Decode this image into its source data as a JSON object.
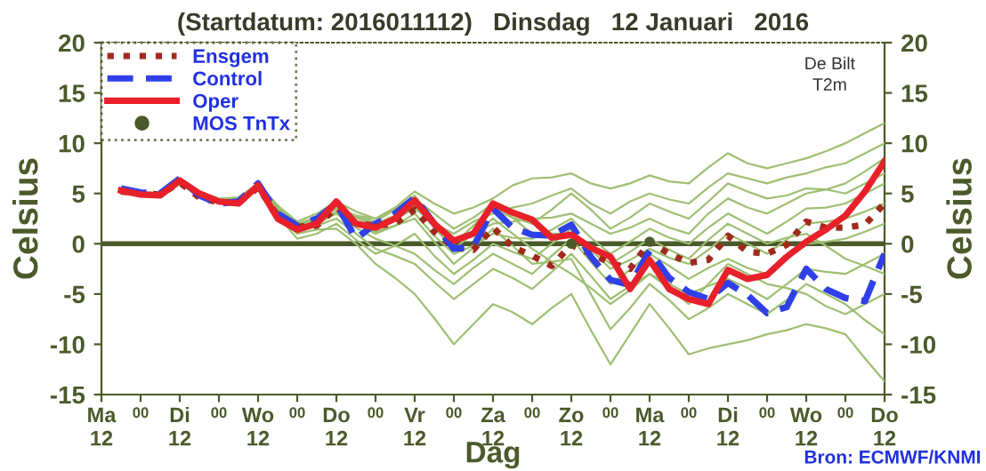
{
  "chart_data": {
    "type": "line",
    "title": "(Startdatum: 2016011112)   Dinsdag   12 Januari   2016",
    "xlabel": "Dag",
    "ylabel": "Celsius",
    "y2label": "Celsius",
    "annotations": [
      "De Bilt\nT2m",
      "Bron: ECMWF/KNMI"
    ],
    "ylim": [
      -15,
      20
    ],
    "yticks": [
      -15,
      -10,
      -5,
      0,
      5,
      10,
      15,
      20
    ],
    "y2lim": [
      -15,
      20
    ],
    "y2ticks": [
      -15,
      -10,
      -5,
      0,
      5,
      10,
      15,
      20
    ],
    "categories": [
      "Ma\n12",
      null,
      "00",
      null,
      "Di\n12",
      null,
      "00",
      null,
      "Wo\n12",
      null,
      "00",
      null,
      "Do\n12",
      null,
      "00",
      null,
      "Vr\n12",
      null,
      "00",
      null,
      "Za\n12",
      null,
      "00",
      null,
      "Zo\n12",
      null,
      "00",
      null,
      "Ma\n12",
      null,
      "00",
      null,
      "Di\n12",
      null,
      "00",
      null,
      "Wo\n12",
      null,
      "00",
      null,
      "Do\n12"
    ],
    "grid": false,
    "legend": "top left",
    "marker": "none",
    "ref_lines": [
      {
        "axis": "y",
        "value": 0,
        "label": null,
        "color": "#4a5a2a",
        "line_style": "solid"
      }
    ],
    "series": [
      {
        "color": "#9ebf72",
        "line_style": "solid",
        "values": [
          null,
          5.5,
          5.2,
          5.0,
          6.4,
          5.2,
          4.5,
          4.6,
          6.0,
          3.8,
          2.0,
          2.6,
          3.5,
          2.8,
          2.5,
          3.6,
          5.2,
          4.0,
          3.0,
          3.6,
          4.5,
          5.8,
          6.5,
          6.6,
          7.0,
          6.0,
          5.5,
          6.0,
          6.8,
          6.2,
          6.0,
          7.6,
          9.0,
          8.0,
          7.5,
          8.0,
          8.5,
          9.2,
          10.0,
          11.0,
          12.0
        ]
      },
      {
        "color": "#9ebf72",
        "line_style": "solid",
        "values": [
          null,
          5.0,
          4.8,
          4.6,
          6.0,
          4.8,
          4.0,
          4.2,
          5.5,
          3.0,
          1.0,
          2.0,
          3.0,
          2.0,
          1.5,
          2.5,
          3.5,
          2.0,
          1.0,
          2.2,
          3.0,
          3.6,
          4.0,
          4.8,
          5.5,
          4.0,
          3.0,
          4.2,
          5.0,
          4.4,
          4.0,
          5.6,
          7.0,
          6.5,
          6.0,
          6.6,
          7.0,
          7.6,
          8.0,
          9.0,
          10.0
        ]
      },
      {
        "color": "#9ebf72",
        "line_style": "solid",
        "values": [
          null,
          5.3,
          5.0,
          4.8,
          6.2,
          5.0,
          4.3,
          4.5,
          5.8,
          3.2,
          1.5,
          2.6,
          4.0,
          2.6,
          2.0,
          2.8,
          4.0,
          2.0,
          0.5,
          1.0,
          2.0,
          2.2,
          2.5,
          2.6,
          3.0,
          2.0,
          1.0,
          1.6,
          2.5,
          1.6,
          1.0,
          3.0,
          4.5,
          3.6,
          3.0,
          4.0,
          5.0,
          5.4,
          6.0,
          7.2,
          8.5
        ]
      },
      {
        "color": "#9ebf72",
        "line_style": "solid",
        "values": [
          null,
          5.2,
          4.9,
          4.7,
          6.1,
          4.9,
          4.1,
          4.3,
          5.6,
          3.4,
          1.8,
          2.4,
          3.5,
          2.0,
          1.0,
          1.8,
          3.0,
          0.8,
          -1.0,
          -0.2,
          1.0,
          0.6,
          0.5,
          1.4,
          2.5,
          0.6,
          -1.0,
          0.2,
          1.5,
          0.6,
          0.0,
          1.6,
          3.0,
          2.0,
          1.0,
          2.2,
          3.5,
          3.6,
          4.0,
          5.0,
          6.0
        ]
      },
      {
        "color": "#9ebf72",
        "line_style": "solid",
        "values": [
          null,
          5.4,
          5.1,
          4.9,
          6.3,
          5.1,
          4.4,
          4.6,
          5.7,
          2.8,
          0.5,
          1.0,
          2.0,
          0.4,
          -1.0,
          -0.2,
          1.0,
          -1.2,
          -3.0,
          -1.6,
          0.0,
          -0.8,
          -1.5,
          0.0,
          1.5,
          -0.6,
          -2.5,
          -1.6,
          -0.5,
          -1.4,
          -2.0,
          -0.6,
          1.0,
          0.0,
          -1.0,
          0.4,
          2.0,
          2.2,
          2.5,
          3.2,
          4.0
        ]
      },
      {
        "color": "#9ebf72",
        "line_style": "solid",
        "values": [
          null,
          5.1,
          4.8,
          4.6,
          5.9,
          4.8,
          4.0,
          4.2,
          5.5,
          3.6,
          2.0,
          2.4,
          3.0,
          1.6,
          0.5,
          -0.2,
          -1.0,
          -2.6,
          -4.0,
          -2.4,
          -1.0,
          -2.0,
          -3.0,
          -1.2,
          0.5,
          -1.8,
          -4.0,
          -2.6,
          -1.0,
          -2.2,
          -3.5,
          -2.4,
          -1.5,
          -2.4,
          -3.0,
          -1.4,
          0.0,
          0.2,
          0.5,
          1.2,
          2.0
        ]
      },
      {
        "color": "#9ebf72",
        "line_style": "solid",
        "values": [
          null,
          5.3,
          5.0,
          4.8,
          6.2,
          5.0,
          4.2,
          4.4,
          5.6,
          3.2,
          1.2,
          1.8,
          2.5,
          1.0,
          -0.5,
          -1.2,
          -2.0,
          -3.8,
          -5.5,
          -4.0,
          -2.5,
          -3.4,
          -4.5,
          -2.8,
          -1.0,
          -3.2,
          -5.5,
          -4.2,
          -3.0,
          -4.0,
          -5.0,
          -4.2,
          -3.5,
          -4.4,
          -5.5,
          -4.0,
          -2.5,
          -2.8,
          -3.0,
          -2.0,
          -1.0
        ]
      },
      {
        "color": "#9ebf72",
        "line_style": "solid",
        "values": [
          null,
          5.2,
          4.9,
          4.7,
          6.0,
          4.9,
          4.1,
          4.3,
          5.4,
          2.8,
          1.0,
          1.4,
          1.5,
          0.0,
          -2.0,
          -3.4,
          -5.0,
          -7.4,
          -10.0,
          -8.0,
          -6.0,
          -6.8,
          -8.0,
          -6.4,
          -5.0,
          -8.6,
          -12.0,
          -9.0,
          -6.0,
          -8.4,
          -11.0,
          -10.4,
          -10.0,
          -9.6,
          -9.0,
          -8.6,
          -8.0,
          -8.4,
          -9.0,
          -11.4,
          -13.7
        ]
      },
      {
        "color": "#9ebf72",
        "line_style": "solid",
        "values": [
          null,
          5.4,
          5.1,
          4.9,
          6.3,
          5.1,
          4.3,
          4.6,
          5.9,
          3.8,
          2.2,
          3.0,
          4.2,
          3.2,
          2.5,
          3.4,
          4.5,
          3.0,
          1.5,
          2.6,
          4.0,
          2.6,
          1.0,
          1.0,
          1.0,
          -0.4,
          -2.0,
          -0.8,
          0.5,
          -0.6,
          -1.5,
          0.4,
          2.0,
          1.0,
          0.0,
          0.6,
          1.0,
          -0.2,
          -1.5,
          -2.2,
          -3.0
        ]
      },
      {
        "color": "#9ebf72",
        "line_style": "solid",
        "values": [
          null,
          5.2,
          5.0,
          4.8,
          6.1,
          5.0,
          4.2,
          4.5,
          5.7,
          3.4,
          1.6,
          2.6,
          3.8,
          2.6,
          1.8,
          2.6,
          3.8,
          1.6,
          -0.5,
          1.0,
          2.5,
          1.0,
          -0.5,
          -1.8,
          -3.0,
          -4.4,
          -6.0,
          -4.6,
          -3.0,
          -4.4,
          -6.0,
          -4.0,
          -2.0,
          -3.0,
          -4.0,
          -4.4,
          -5.0,
          -6.2,
          -7.0,
          -6.0,
          -5.0
        ]
      },
      {
        "color": "#9ebf72",
        "line_style": "solid",
        "values": [
          null,
          5.3,
          4.9,
          4.7,
          6.2,
          4.9,
          4.0,
          4.3,
          5.6,
          3.4,
          1.4,
          2.2,
          3.2,
          2.0,
          1.2,
          1.8,
          2.5,
          0.2,
          -2.0,
          -0.4,
          1.5,
          -0.2,
          -2.0,
          -1.8,
          -1.5,
          -5.0,
          -8.5,
          -6.4,
          -4.0,
          -5.6,
          -7.5,
          -6.4,
          -5.0,
          -6.0,
          -7.0,
          -5.6,
          -4.0,
          -5.0,
          -6.0,
          -7.6,
          -9.0
        ]
      },
      {
        "color": "#9ebf72",
        "line_style": "solid",
        "values": [
          null,
          5.1,
          5.0,
          4.8,
          6.0,
          5.0,
          4.1,
          4.4,
          5.5,
          3.4,
          1.7,
          2.6,
          3.6,
          2.8,
          2.2,
          3.4,
          4.8,
          2.2,
          0.0,
          1.8,
          3.5,
          2.6,
          2.0,
          3.4,
          5.0,
          3.4,
          1.5,
          2.6,
          4.0,
          3.2,
          2.5,
          4.2,
          6.0,
          5.2,
          4.5,
          4.8,
          5.5,
          5.4,
          5.0,
          6.0,
          7.0
        ]
      },
      {
        "name": "Ensgem",
        "color": "#a02a1c",
        "line_style": "dotted",
        "values": [
          null,
          5.2,
          5.0,
          4.9,
          6.1,
          4.6,
          4.1,
          4.1,
          5.6,
          2.8,
          1.7,
          1.8,
          3.6,
          2.0,
          1.8,
          2.0,
          3.4,
          1.2,
          -0.4,
          -0.6,
          1.6,
          -0.3,
          -1.2,
          -2.2,
          -0.1,
          -1.0,
          -1.9,
          -2.5,
          0.2,
          -1.0,
          -1.9,
          -1.6,
          0.8,
          -0.8,
          -1.0,
          -0.1,
          2.2,
          1.6,
          1.6,
          1.9,
          4.0
        ]
      },
      {
        "name": "Control",
        "color": "#3040e8",
        "line_style": "dashed",
        "values": [
          null,
          5.5,
          5.1,
          5.0,
          6.5,
          4.8,
          4.0,
          4.2,
          6.0,
          3.0,
          1.8,
          2.5,
          4.0,
          0.5,
          2.0,
          3.0,
          4.6,
          2.0,
          -0.5,
          -0.3,
          3.5,
          1.6,
          0.9,
          0.8,
          1.9,
          -1.3,
          -3.6,
          -4.1,
          -0.7,
          -3.4,
          -4.8,
          -5.5,
          -3.9,
          -5.1,
          -6.9,
          -6.3,
          -2.5,
          -4.5,
          -5.4,
          -5.7,
          -1.0
        ]
      },
      {
        "name": "Oper",
        "color": "#e8202a",
        "line_style": "solid",
        "values": [
          null,
          5.3,
          4.9,
          4.8,
          6.3,
          5.0,
          4.2,
          4.0,
          5.8,
          2.5,
          1.4,
          2.0,
          4.2,
          2.0,
          1.6,
          2.5,
          4.3,
          2.0,
          0.3,
          1.0,
          4.0,
          3.1,
          2.4,
          0.6,
          0.9,
          -0.4,
          -1.3,
          -4.5,
          -1.6,
          -4.5,
          -5.5,
          -6.0,
          -2.6,
          -3.5,
          -3.1,
          -1.3,
          0.2,
          1.4,
          2.8,
          5.2,
          8.2
        ]
      },
      {
        "name": "MOS TnTx",
        "type": "scatter",
        "marker": "circle",
        "color": "#4a5a2a",
        "values": [
          null,
          null,
          null,
          null,
          null,
          null,
          null,
          null,
          null,
          null,
          null,
          null,
          null,
          null,
          null,
          null,
          null,
          null,
          null,
          null,
          null,
          null,
          null,
          null,
          0.0,
          null,
          null,
          null,
          0.2,
          null,
          null,
          null,
          null,
          null,
          null,
          null,
          null,
          null,
          null,
          null,
          null
        ]
      }
    ]
  }
}
